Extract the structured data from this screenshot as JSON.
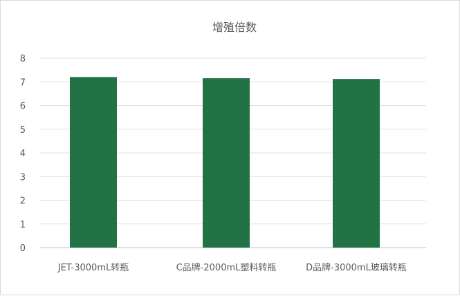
{
  "chart_data": {
    "type": "bar",
    "title": "增殖倍数",
    "categories": [
      "JET-3000mL转瓶",
      "C品牌-2000mL塑料转瓶",
      "D品牌-3000mL玻璃转瓶"
    ],
    "values": [
      7.2,
      7.15,
      7.12
    ],
    "ylim": [
      0,
      8
    ],
    "yticks": [
      0,
      1,
      2,
      3,
      4,
      5,
      6,
      7,
      8
    ],
    "grid": true,
    "bar_color": "#217346",
    "xlabel": "",
    "ylabel": ""
  }
}
